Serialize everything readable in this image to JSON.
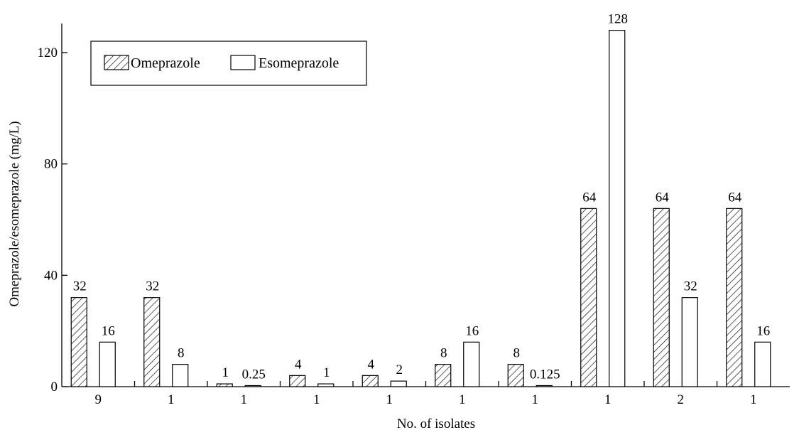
{
  "chart_data": {
    "type": "bar",
    "title": "",
    "xlabel": "No. of isolates",
    "ylabel": "Omeprazole/esomeprazole (mg/L)",
    "ylim": [
      0,
      130
    ],
    "yticks": [
      0,
      40,
      80,
      120
    ],
    "categories": [
      "9",
      "1",
      "1",
      "1",
      "1",
      "1",
      "1",
      "1",
      "2",
      "1"
    ],
    "series": [
      {
        "name": "Omeprazole",
        "pattern": "hatched",
        "values": [
          32,
          32,
          1,
          4,
          4,
          8,
          8,
          64,
          64,
          64
        ],
        "labels": [
          "32",
          "32",
          "1",
          "4",
          "4",
          "8",
          "8",
          "64",
          "64",
          "64"
        ]
      },
      {
        "name": "Esomeprazole",
        "pattern": "open",
        "values": [
          16,
          8,
          0.25,
          1,
          2,
          16,
          0.125,
          128,
          32,
          16
        ],
        "labels": [
          "16",
          "8",
          "0.25",
          "1",
          "2",
          "16",
          "0.125",
          "128",
          "32",
          "16"
        ]
      }
    ],
    "legend": {
      "placement": "top-left",
      "entries": [
        "Omeprazole",
        "Esomeprazole"
      ]
    },
    "grid": false,
    "colors": {
      "stroke": "#000000",
      "fill": "#ffffff"
    }
  }
}
